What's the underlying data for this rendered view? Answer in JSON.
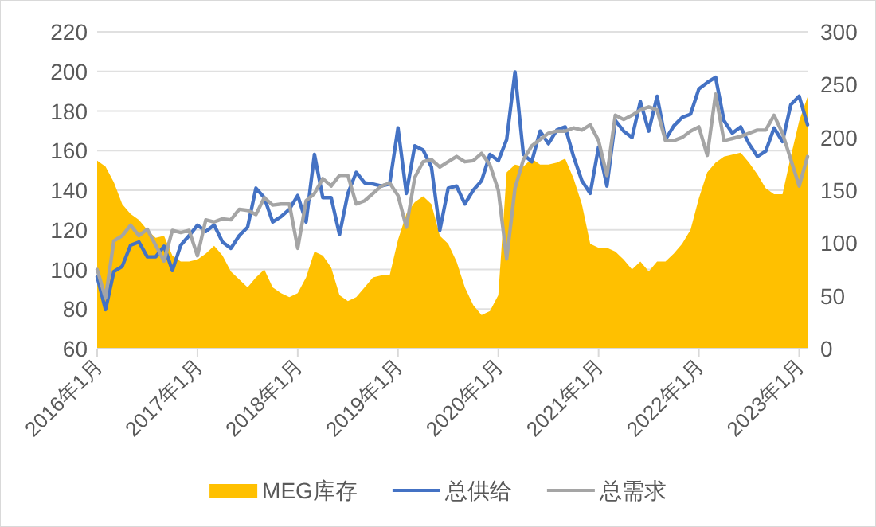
{
  "chart_data": {
    "type": "line",
    "x": [
      "2016-01",
      "2016-02",
      "2016-03",
      "2016-04",
      "2016-05",
      "2016-06",
      "2016-07",
      "2016-08",
      "2016-09",
      "2016-10",
      "2016-11",
      "2016-12",
      "2017-01",
      "2017-02",
      "2017-03",
      "2017-04",
      "2017-05",
      "2017-06",
      "2017-07",
      "2017-08",
      "2017-09",
      "2017-10",
      "2017-11",
      "2017-12",
      "2018-01",
      "2018-02",
      "2018-03",
      "2018-04",
      "2018-05",
      "2018-06",
      "2018-07",
      "2018-08",
      "2018-09",
      "2018-10",
      "2018-11",
      "2018-12",
      "2019-01",
      "2019-02",
      "2019-03",
      "2019-04",
      "2019-05",
      "2019-06",
      "2019-07",
      "2019-08",
      "2019-09",
      "2019-10",
      "2019-11",
      "2019-12",
      "2020-01",
      "2020-02",
      "2020-03",
      "2020-04",
      "2020-05",
      "2020-06",
      "2020-07",
      "2020-08",
      "2020-09",
      "2020-10",
      "2020-11",
      "2020-12",
      "2021-01",
      "2021-02",
      "2021-03",
      "2021-04",
      "2021-05",
      "2021-06",
      "2021-07",
      "2021-08",
      "2021-09",
      "2021-10",
      "2021-11",
      "2021-12",
      "2022-01",
      "2022-02",
      "2022-03",
      "2022-04",
      "2022-05",
      "2022-06",
      "2022-07",
      "2022-08",
      "2022-09",
      "2022-10",
      "2022-11",
      "2022-12",
      "2023-01",
      "2023-02"
    ],
    "xlim": [
      "2016-01",
      "2023-02"
    ],
    "xticks": [
      {
        "value": "2016-01",
        "label": "2016年1月"
      },
      {
        "value": "2017-01",
        "label": "2017年1月"
      },
      {
        "value": "2018-01",
        "label": "2018年1月"
      },
      {
        "value": "2019-01",
        "label": "2019年1月"
      },
      {
        "value": "2020-01",
        "label": "2020年1月"
      },
      {
        "value": "2021-01",
        "label": "2021年1月"
      },
      {
        "value": "2022-01",
        "label": "2022年1月"
      },
      {
        "value": "2023-01",
        "label": "2023年1月"
      }
    ],
    "ylim": [
      60,
      220
    ],
    "yticks": [
      60,
      80,
      100,
      120,
      140,
      160,
      180,
      200,
      220
    ],
    "y2lim": [
      0,
      300
    ],
    "y2ticks": [
      0,
      50,
      100,
      150,
      200,
      250,
      300
    ],
    "grid": "y",
    "legend": "bottom",
    "series": [
      {
        "name": "MEG库存",
        "type": "area",
        "color": "#ffc000",
        "values": [
          155,
          152,
          144,
          133,
          128,
          125,
          120,
          116,
          117,
          107,
          104,
          104,
          105,
          108,
          112,
          107,
          99,
          95,
          91,
          96,
          100,
          91,
          88,
          86,
          88,
          96,
          109,
          107,
          101,
          87,
          84,
          86,
          91,
          96,
          97,
          97,
          115,
          128,
          134,
          137,
          133,
          117,
          113,
          104,
          91,
          82,
          77,
          79,
          87,
          149,
          153,
          152,
          156,
          153,
          153,
          154,
          156,
          146,
          133,
          113,
          111,
          111,
          109,
          105,
          100,
          104,
          99,
          104,
          104,
          108,
          113,
          120,
          136,
          149,
          154,
          157,
          158,
          159,
          154,
          148,
          141,
          138,
          138,
          157,
          175,
          187
        ]
      },
      {
        "name": "总供给",
        "axis": "y2",
        "color": "#4472c4",
        "values": [
          68,
          37,
          73,
          78,
          98,
          101,
          87,
          87,
          97,
          74,
          98,
          107,
          117,
          111,
          117,
          101,
          95,
          107,
          115,
          152,
          143,
          120,
          125,
          132,
          145,
          120,
          184,
          143,
          143,
          108,
          147,
          167,
          157,
          156,
          154,
          156,
          209,
          147,
          192,
          188,
          172,
          112,
          152,
          154,
          137,
          150,
          159,
          184,
          178,
          198,
          262,
          184,
          177,
          206,
          194,
          207,
          210,
          182,
          159,
          147,
          191,
          154,
          216,
          206,
          200,
          234,
          206,
          239,
          198,
          211,
          219,
          222,
          246,
          252,
          257,
          216,
          204,
          210,
          194,
          182,
          187,
          209,
          196,
          231,
          239,
          212
        ]
      },
      {
        "name": "总需求",
        "axis": "y2",
        "color": "#a5a5a5",
        "values": [
          75,
          48,
          102,
          107,
          117,
          107,
          113,
          98,
          83,
          112,
          110,
          112,
          88,
          122,
          120,
          123,
          122,
          132,
          131,
          127,
          143,
          136,
          137,
          137,
          95,
          140,
          147,
          161,
          154,
          164,
          164,
          137,
          140,
          147,
          154,
          157,
          145,
          115,
          162,
          177,
          179,
          172,
          177,
          182,
          177,
          178,
          185,
          174,
          150,
          85,
          152,
          179,
          192,
          198,
          204,
          206,
          206,
          209,
          207,
          212,
          197,
          164,
          221,
          217,
          221,
          226,
          229,
          226,
          197,
          197,
          200,
          206,
          210,
          183,
          241,
          197,
          199,
          201,
          204,
          207,
          207,
          221,
          204,
          179,
          154,
          182
        ]
      }
    ]
  }
}
